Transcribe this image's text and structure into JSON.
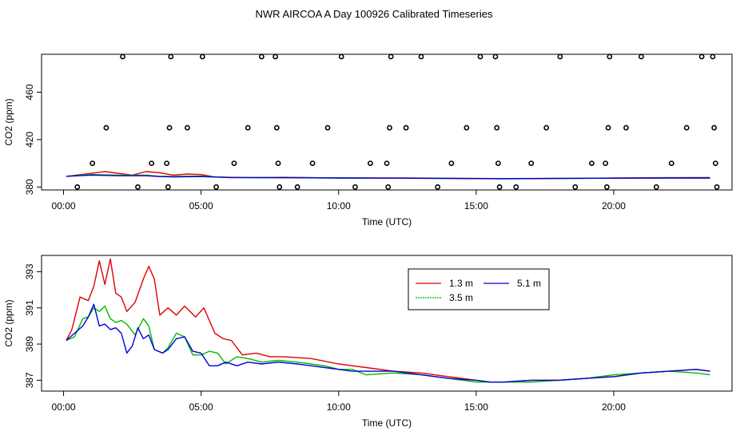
{
  "title": "NWR AIRCOA A  Day 100926  Calibrated Timeseries",
  "colors": {
    "1.3 m": "#e00000",
    "3.5 m": "#00bb00",
    "5.1 m": "#0000dd",
    "cal": "#000000"
  },
  "chart_data": [
    {
      "type": "line",
      "panel": "top",
      "xlabel": "Time (UTC)",
      "ylabel": "CO2 (ppm)",
      "xlim": [
        -0.8,
        24.3
      ],
      "ylim": [
        377.5,
        492
      ],
      "xticks": [
        0,
        5,
        10,
        15,
        20
      ],
      "xtick_labels": [
        "00:00",
        "05:00",
        "10:00",
        "15:00",
        "20:00"
      ],
      "yticks": [
        380,
        420,
        460
      ],
      "ytick_labels": [
        "380",
        "420",
        "460"
      ],
      "calibration_points": {
        "x": [
          0.5,
          1.05,
          1.55,
          2.15,
          2.7,
          3.2,
          3.75,
          3.8,
          3.85,
          3.9,
          4.5,
          5.05,
          5.55,
          6.2,
          6.7,
          7.2,
          7.7,
          7.75,
          7.8,
          7.85,
          8.5,
          9.05,
          9.6,
          10.1,
          10.6,
          11.15,
          11.75,
          11.8,
          11.85,
          11.9,
          12.45,
          13.0,
          13.6,
          14.1,
          14.65,
          15.15,
          15.7,
          15.75,
          15.8,
          15.85,
          16.45,
          17.0,
          17.55,
          18.05,
          18.6,
          19.2,
          19.7,
          19.75,
          19.8,
          19.85,
          20.45,
          21.0,
          21.55,
          22.1,
          22.65,
          23.2,
          23.6,
          23.65,
          23.7,
          23.75
        ],
        "y": [
          380,
          400,
          430,
          490,
          380,
          400,
          400,
          380,
          430,
          490,
          430,
          490,
          380,
          400,
          430,
          490,
          490,
          430,
          400,
          380,
          380,
          400,
          430,
          490,
          380,
          400,
          400,
          380,
          430,
          490,
          430,
          490,
          380,
          400,
          430,
          490,
          490,
          430,
          400,
          380,
          380,
          400,
          430,
          490,
          380,
          400,
          400,
          380,
          430,
          490,
          430,
          490,
          380,
          400,
          430,
          490,
          490,
          430,
          400,
          380
        ]
      },
      "series": [
        {
          "name": "1.3 m",
          "x": [
            0.1,
            1.0,
            1.5,
            2.5,
            3.0,
            3.5,
            4.0,
            4.5,
            5.0,
            5.5,
            6.0,
            7.0,
            8.0,
            10.0,
            12.0,
            14.0,
            16.0,
            18.0,
            20.0,
            22.0,
            23.5
          ],
          "y": [
            389,
            391.5,
            393,
            390,
            393,
            392,
            390,
            391,
            390.5,
            388.5,
            388.2,
            388,
            388.2,
            387.7,
            387.7,
            387.4,
            387.1,
            387.3,
            387.6,
            387.9,
            388.0
          ]
        },
        {
          "name": "3.5 m",
          "x": [
            0.1,
            1.0,
            2.0,
            3.0,
            3.5,
            4.0,
            5.0,
            6.0,
            8.0,
            10.0,
            12.0,
            14.0,
            16.0,
            18.0,
            20.0,
            22.0,
            23.5
          ],
          "y": [
            389,
            390.5,
            390,
            390,
            389,
            389,
            389.2,
            388,
            388,
            387.6,
            387.5,
            387.2,
            387.0,
            387.2,
            387.5,
            387.6,
            387.5
          ]
        },
        {
          "name": "5.1 m",
          "x": [
            0.1,
            1.0,
            2.0,
            3.0,
            3.5,
            4.0,
            5.0,
            6.0,
            8.0,
            10.0,
            12.0,
            14.0,
            16.0,
            18.0,
            20.0,
            22.0,
            23.5
          ],
          "y": [
            389,
            390,
            389.5,
            389.5,
            388.8,
            388.5,
            388.8,
            388,
            387.8,
            387.6,
            387.5,
            387.2,
            387.0,
            387.2,
            387.4,
            387.6,
            387.6
          ]
        }
      ]
    },
    {
      "type": "line",
      "panel": "bottom",
      "xlabel": "Time (UTC)",
      "ylabel": "CO2 (ppm)",
      "xlim": [
        -0.8,
        24.3
      ],
      "ylim": [
        386.4,
        393.9
      ],
      "xticks": [
        0,
        5,
        10,
        15,
        20
      ],
      "xtick_labels": [
        "00:00",
        "05:00",
        "10:00",
        "15:00",
        "20:00"
      ],
      "yticks": [
        387,
        389,
        391,
        393
      ],
      "ytick_labels": [
        "387",
        "389",
        "391",
        "393"
      ],
      "legend": {
        "entries": [
          "1.3 m",
          "5.1 m",
          "3.5 m"
        ],
        "placement": "top-center"
      },
      "series": [
        {
          "name": "1.3 m",
          "x": [
            0.1,
            0.3,
            0.6,
            0.9,
            1.1,
            1.3,
            1.5,
            1.7,
            1.9,
            2.1,
            2.3,
            2.6,
            2.9,
            3.1,
            3.3,
            3.5,
            3.8,
            4.1,
            4.4,
            4.8,
            5.1,
            5.3,
            5.5,
            5.8,
            6.1,
            6.5,
            7.0,
            7.5,
            8.0,
            9.0,
            10.0,
            10.5,
            11.0,
            12.0,
            13.0,
            14.0,
            15.0,
            15.5,
            16.0,
            17.0,
            18.0,
            19.0,
            20.0,
            21.0,
            22.0,
            23.0,
            23.5
          ],
          "y": [
            389.2,
            389.8,
            391.6,
            391.4,
            392.2,
            393.6,
            392.3,
            393.7,
            391.8,
            391.6,
            390.8,
            391.3,
            392.6,
            393.3,
            392.6,
            390.6,
            391.0,
            390.6,
            391.1,
            390.5,
            391.0,
            390.3,
            389.6,
            389.3,
            389.2,
            388.4,
            388.5,
            388.3,
            388.3,
            388.2,
            387.9,
            387.8,
            387.7,
            387.5,
            387.4,
            387.2,
            387.0,
            386.9,
            386.9,
            387.0,
            387.0,
            387.1,
            387.2,
            387.4,
            387.5,
            387.6,
            387.5
          ]
        },
        {
          "name": "3.5 m",
          "x": [
            0.1,
            0.4,
            0.7,
            0.9,
            1.1,
            1.3,
            1.5,
            1.7,
            1.9,
            2.1,
            2.3,
            2.6,
            2.9,
            3.1,
            3.3,
            3.6,
            3.8,
            4.1,
            4.4,
            4.7,
            5.0,
            5.3,
            5.6,
            5.9,
            6.3,
            6.7,
            7.2,
            7.8,
            8.5,
            9.5,
            10.0,
            10.5,
            11.0,
            12.0,
            13.0,
            14.0,
            15.0,
            15.5,
            16.0,
            17.0,
            18.0,
            19.0,
            20.0,
            21.0,
            22.0,
            23.0,
            23.5
          ],
          "y": [
            389.2,
            389.4,
            390.4,
            390.5,
            391.0,
            390.8,
            391.1,
            390.4,
            390.2,
            390.3,
            390.1,
            389.5,
            390.4,
            390.0,
            388.7,
            388.5,
            388.8,
            389.6,
            389.4,
            388.4,
            388.4,
            388.6,
            388.5,
            387.9,
            388.3,
            388.2,
            388.0,
            388.1,
            388.0,
            387.8,
            387.6,
            387.6,
            387.3,
            387.4,
            387.3,
            387.1,
            386.9,
            386.9,
            386.9,
            386.9,
            387.0,
            387.1,
            387.3,
            387.4,
            387.5,
            387.4,
            387.3
          ]
        },
        {
          "name": "5.1 m",
          "x": [
            0.1,
            0.4,
            0.7,
            0.9,
            1.1,
            1.3,
            1.5,
            1.7,
            1.9,
            2.1,
            2.3,
            2.5,
            2.7,
            2.9,
            3.1,
            3.3,
            3.6,
            3.8,
            4.1,
            4.4,
            4.7,
            5.0,
            5.3,
            5.6,
            5.9,
            6.3,
            6.7,
            7.2,
            7.8,
            8.5,
            9.5,
            10.0,
            10.5,
            11.0,
            12.0,
            13.0,
            14.0,
            15.0,
            15.5,
            16.0,
            17.0,
            18.0,
            19.0,
            20.0,
            21.0,
            22.0,
            23.0,
            23.5
          ],
          "y": [
            389.2,
            389.6,
            390.0,
            390.5,
            391.2,
            390.0,
            390.1,
            389.8,
            389.9,
            389.6,
            388.5,
            388.9,
            389.9,
            389.3,
            389.5,
            388.7,
            388.5,
            388.7,
            389.3,
            389.4,
            388.6,
            388.5,
            387.8,
            387.8,
            388.0,
            387.8,
            388.0,
            387.9,
            388.0,
            387.9,
            387.7,
            387.6,
            387.5,
            387.5,
            387.5,
            387.3,
            387.1,
            387.0,
            386.9,
            386.9,
            387.0,
            387.0,
            387.1,
            387.2,
            387.4,
            387.5,
            387.6,
            387.5
          ]
        }
      ]
    }
  ]
}
